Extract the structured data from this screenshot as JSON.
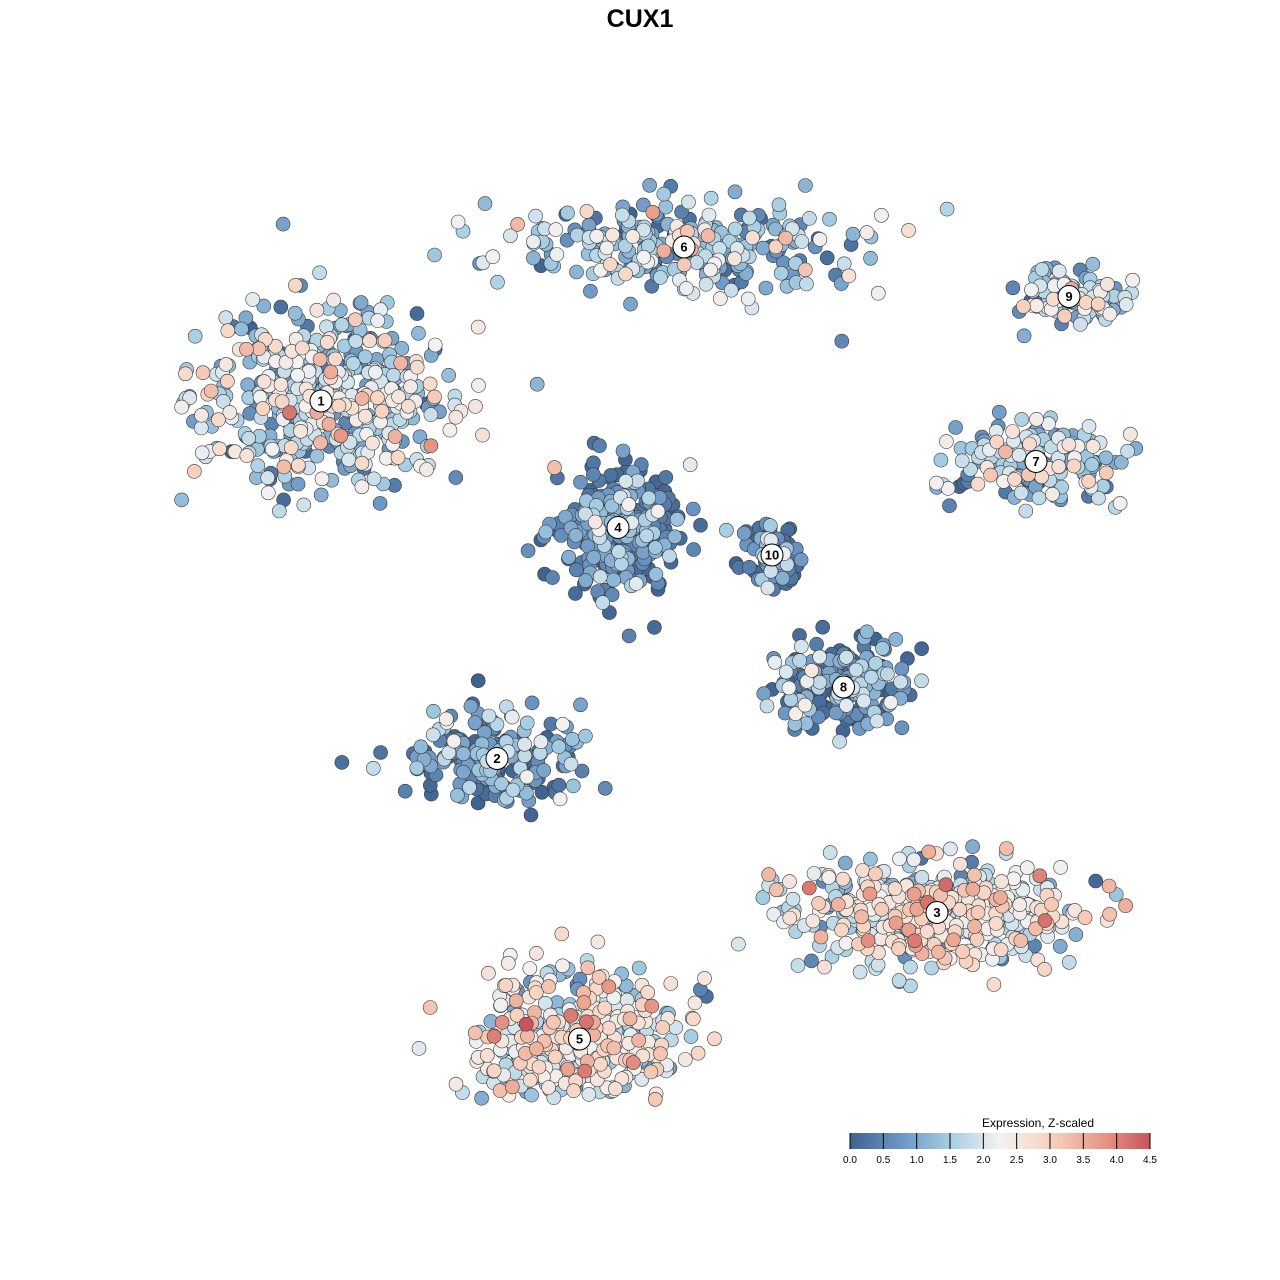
{
  "chart_data": {
    "type": "scatter",
    "title": "CUX1",
    "xlabel": "",
    "ylabel": "",
    "grid": false,
    "axes": "none",
    "colormap": [
      "#3f6390",
      "#6b95c3",
      "#a5cde3",
      "#f2f2f2",
      "#f7d3c0",
      "#e99a88",
      "#c8555b"
    ],
    "colorbar": {
      "title": "Expression, Z-scaled",
      "range": [
        0,
        4.5
      ],
      "ticks": [
        "0.0",
        "0.5",
        "1.0",
        "1.5",
        "2.0",
        "2.5",
        "3.0",
        "3.5",
        "4.0",
        "4.5"
      ],
      "placement": "bottom-right"
    },
    "clusters": [
      {
        "label": "1",
        "x": -2.9,
        "y": 1.9,
        "mean": 1.6,
        "n": 520
      },
      {
        "label": "2",
        "x": -1.3,
        "y": -1.35,
        "mean": 0.6,
        "n": 200
      },
      {
        "label": "3",
        "x": 2.7,
        "y": -2.75,
        "mean": 2.0,
        "n": 520
      },
      {
        "label": "4",
        "x": -0.2,
        "y": 0.75,
        "mean": 0.4,
        "n": 320
      },
      {
        "label": "5",
        "x": -0.55,
        "y": -3.9,
        "mean": 2.1,
        "n": 420
      },
      {
        "label": "6",
        "x": 0.4,
        "y": 3.3,
        "mean": 1.3,
        "n": 300
      },
      {
        "label": "7",
        "x": 3.6,
        "y": 1.35,
        "mean": 1.4,
        "n": 190
      },
      {
        "label": "8",
        "x": 1.85,
        "y": -0.7,
        "mean": 0.7,
        "n": 200
      },
      {
        "label": "9",
        "x": 3.9,
        "y": 2.85,
        "mean": 1.3,
        "n": 110
      },
      {
        "label": "10",
        "x": 1.2,
        "y": 0.5,
        "mean": 0.4,
        "n": 90
      }
    ]
  }
}
